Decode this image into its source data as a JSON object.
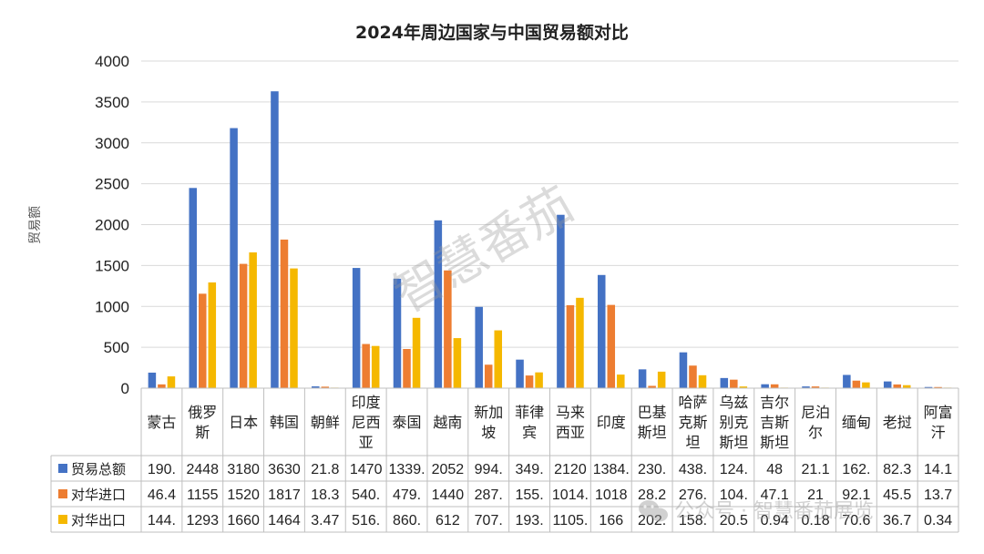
{
  "chart_data": {
    "type": "bar",
    "title": "2024年周边国家与中国贸易额对比",
    "ylabel": "贸易额",
    "ylim": [
      0,
      4000
    ],
    "yticks": [
      "0",
      "500",
      "1000",
      "1500",
      "2000",
      "2500",
      "3000",
      "3500",
      "4000"
    ],
    "grid": true,
    "legend": "table-bottom",
    "categories": [
      "蒙古",
      "俄罗斯",
      "日本",
      "韩国",
      "朝鲜",
      "印度尼西亚",
      "泰国",
      "越南",
      "新加坡",
      "菲律宾",
      "马来西亚",
      "印度",
      "巴基斯坦",
      "哈萨克斯坦",
      "乌兹别克斯坦",
      "吉尔吉斯斯坦",
      "尼泊尔",
      "缅甸",
      "老挝",
      "阿富汗"
    ],
    "category_label_lines": [
      [
        "蒙古"
      ],
      [
        "俄罗",
        "斯"
      ],
      [
        "日本"
      ],
      [
        "韩国"
      ],
      [
        "朝鲜"
      ],
      [
        "印度",
        "尼西",
        "亚"
      ],
      [
        "泰国"
      ],
      [
        "越南"
      ],
      [
        "新加",
        "坡"
      ],
      [
        "菲律",
        "宾"
      ],
      [
        "马来",
        "西亚"
      ],
      [
        "印度"
      ],
      [
        "巴基",
        "斯坦"
      ],
      [
        "哈萨",
        "克斯",
        "坦"
      ],
      [
        "乌兹",
        "别克",
        "斯坦"
      ],
      [
        "吉尔",
        "吉斯",
        "斯坦"
      ],
      [
        "尼泊",
        "尔"
      ],
      [
        "缅甸"
      ],
      [
        "老挝"
      ],
      [
        "阿富",
        "汗"
      ]
    ],
    "series": [
      {
        "name": "贸易总额",
        "color": "#4472C4",
        "values": [
          190,
          2448,
          3180,
          3630,
          21.8,
          1470,
          1339,
          2052,
          994,
          349,
          2120,
          1384,
          230,
          438,
          124,
          48,
          21.1,
          162,
          82.3,
          14.1
        ],
        "table_labels": [
          "190.",
          "2448",
          "3180",
          "3630",
          "21.8",
          "1470",
          "1339.",
          "2052",
          "994.",
          "349.",
          "2120",
          "1384.",
          "230.",
          "438.",
          "124.",
          "48",
          "21.1",
          "162.",
          "82.3",
          "14.1"
        ]
      },
      {
        "name": "对华进口",
        "color": "#ED7D31",
        "values": [
          46.4,
          1155,
          1520,
          1817,
          18.3,
          540,
          479,
          1440,
          287,
          155,
          1014,
          1018,
          28.2,
          276,
          104,
          47.1,
          21,
          92.1,
          45.5,
          13.7
        ],
        "table_labels": [
          "46.4",
          "1155",
          "1520",
          "1817",
          "18.3",
          "540.",
          "479.",
          "1440",
          "287.",
          "155.",
          "1014.",
          "1018",
          "28.2",
          "276.",
          "104.",
          "47.1",
          "21",
          "92.1",
          "45.5",
          "13.7"
        ]
      },
      {
        "name": "对华出口",
        "color": "#F5B800",
        "values": [
          144,
          1293,
          1660,
          1464,
          3.47,
          516,
          860,
          612,
          707,
          193,
          1105,
          166,
          202,
          158,
          20.5,
          0.94,
          0.18,
          70.6,
          36.7,
          0.34
        ],
        "table_labels": [
          "144.",
          "1293",
          "1660",
          "1464",
          "3.47",
          "516.",
          "860.",
          "612",
          "707.",
          "193.",
          "1105.",
          "166",
          "202.",
          "158.",
          "20.5",
          "0.94",
          "0.18",
          "70.6",
          "36.7",
          "0.34"
        ]
      }
    ]
  },
  "watermark": {
    "center_text": "智慧番茄",
    "bottom_text": "公众号 · 智慧番茄展览",
    "icon": "wechat-icon"
  }
}
